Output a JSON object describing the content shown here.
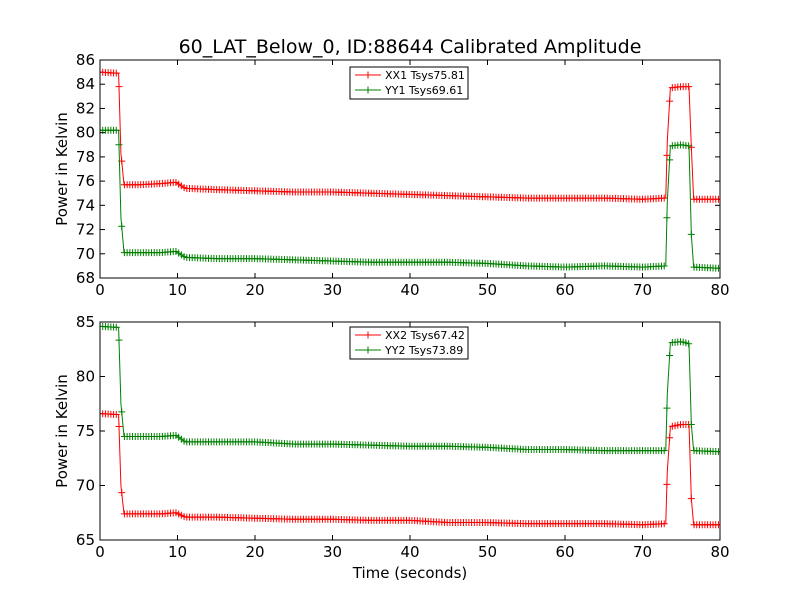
{
  "chart_data": [
    {
      "type": "line",
      "title": "60_LAT_Below_0, ID:88644 Calibrated Amplitude",
      "xlabel": "",
      "ylabel": "Power in Kelvin",
      "xlim": [
        0,
        80
      ],
      "ylim": [
        68,
        86
      ],
      "x_ticks": [
        0,
        10,
        20,
        30,
        40,
        50,
        60,
        70,
        80
      ],
      "y_ticks": [
        68,
        70,
        72,
        74,
        76,
        78,
        80,
        82,
        84,
        86
      ],
      "legend_position": "top-center",
      "grid": false,
      "series": [
        {
          "name": "XX1 Tsys75.81",
          "color": "#ff0000",
          "points": [
            [
              0,
              85.0
            ],
            [
              2.4,
              84.9
            ],
            [
              2.7,
              78.3
            ],
            [
              3.1,
              75.7
            ],
            [
              5,
              75.7
            ],
            [
              8,
              75.8
            ],
            [
              9.8,
              75.9
            ],
            [
              11,
              75.4
            ],
            [
              15,
              75.3
            ],
            [
              20,
              75.2
            ],
            [
              25,
              75.1
            ],
            [
              30,
              75.1
            ],
            [
              35,
              75.0
            ],
            [
              40,
              74.9
            ],
            [
              45,
              74.8
            ],
            [
              50,
              74.7
            ],
            [
              55,
              74.6
            ],
            [
              60,
              74.6
            ],
            [
              65,
              74.6
            ],
            [
              70,
              74.5
            ],
            [
              73.0,
              74.6
            ],
            [
              73.2,
              79.3
            ],
            [
              73.6,
              83.7
            ],
            [
              75.0,
              83.8
            ],
            [
              76.0,
              83.8
            ],
            [
              76.3,
              78.8
            ],
            [
              76.6,
              74.5
            ],
            [
              80,
              74.5
            ]
          ]
        },
        {
          "name": "YY1 Tsys69.61",
          "color": "#008000",
          "points": [
            [
              0,
              80.2
            ],
            [
              2.4,
              80.2
            ],
            [
              2.7,
              73.0
            ],
            [
              3.1,
              70.1
            ],
            [
              5,
              70.1
            ],
            [
              8,
              70.1
            ],
            [
              9.8,
              70.2
            ],
            [
              11,
              69.7
            ],
            [
              15,
              69.6
            ],
            [
              20,
              69.6
            ],
            [
              25,
              69.5
            ],
            [
              30,
              69.4
            ],
            [
              35,
              69.3
            ],
            [
              40,
              69.3
            ],
            [
              45,
              69.3
            ],
            [
              50,
              69.2
            ],
            [
              55,
              69.0
            ],
            [
              60,
              68.9
            ],
            [
              65,
              69.0
            ],
            [
              70,
              68.9
            ],
            [
              73.0,
              69.0
            ],
            [
              73.2,
              74.3
            ],
            [
              73.6,
              78.9
            ],
            [
              75.0,
              79.0
            ],
            [
              76.0,
              78.9
            ],
            [
              76.3,
              71.6
            ],
            [
              76.6,
              68.9
            ],
            [
              80,
              68.8
            ]
          ]
        }
      ]
    },
    {
      "type": "line",
      "title": "",
      "xlabel": "Time (seconds)",
      "ylabel": "Power in Kelvin",
      "xlim": [
        0,
        80
      ],
      "ylim": [
        65,
        85
      ],
      "x_ticks": [
        0,
        10,
        20,
        30,
        40,
        50,
        60,
        70,
        80
      ],
      "y_ticks": [
        65,
        70,
        75,
        80,
        85
      ],
      "legend_position": "top-center",
      "grid": false,
      "series": [
        {
          "name": "XX2 Tsys67.42",
          "color": "#ff0000",
          "points": [
            [
              0,
              76.6
            ],
            [
              2.4,
              76.5
            ],
            [
              2.7,
              70.0
            ],
            [
              3.1,
              67.4
            ],
            [
              5,
              67.4
            ],
            [
              8,
              67.4
            ],
            [
              9.8,
              67.5
            ],
            [
              11,
              67.1
            ],
            [
              15,
              67.1
            ],
            [
              20,
              67.0
            ],
            [
              25,
              66.9
            ],
            [
              30,
              66.9
            ],
            [
              35,
              66.8
            ],
            [
              40,
              66.8
            ],
            [
              45,
              66.6
            ],
            [
              50,
              66.6
            ],
            [
              55,
              66.5
            ],
            [
              60,
              66.5
            ],
            [
              65,
              66.5
            ],
            [
              70,
              66.4
            ],
            [
              73.0,
              66.5
            ],
            [
              73.2,
              71.3
            ],
            [
              73.6,
              75.4
            ],
            [
              75.0,
              75.6
            ],
            [
              76.0,
              75.6
            ],
            [
              76.3,
              68.8
            ],
            [
              76.6,
              66.4
            ],
            [
              80,
              66.4
            ]
          ]
        },
        {
          "name": "YY2 Tsys73.89",
          "color": "#008000",
          "points": [
            [
              0,
              84.6
            ],
            [
              2.4,
              84.5
            ],
            [
              2.7,
              77.5
            ],
            [
              3.1,
              74.5
            ],
            [
              5,
              74.5
            ],
            [
              8,
              74.5
            ],
            [
              9.8,
              74.6
            ],
            [
              11,
              74.0
            ],
            [
              15,
              74.0
            ],
            [
              20,
              74.0
            ],
            [
              25,
              73.8
            ],
            [
              30,
              73.8
            ],
            [
              35,
              73.7
            ],
            [
              40,
              73.6
            ],
            [
              45,
              73.6
            ],
            [
              50,
              73.5
            ],
            [
              55,
              73.3
            ],
            [
              60,
              73.3
            ],
            [
              65,
              73.2
            ],
            [
              70,
              73.2
            ],
            [
              73.0,
              73.2
            ],
            [
              73.2,
              78.4
            ],
            [
              73.6,
              83.1
            ],
            [
              75.0,
              83.2
            ],
            [
              76.0,
              83.0
            ],
            [
              76.3,
              75.6
            ],
            [
              76.6,
              73.2
            ],
            [
              80,
              73.1
            ]
          ]
        }
      ]
    }
  ]
}
